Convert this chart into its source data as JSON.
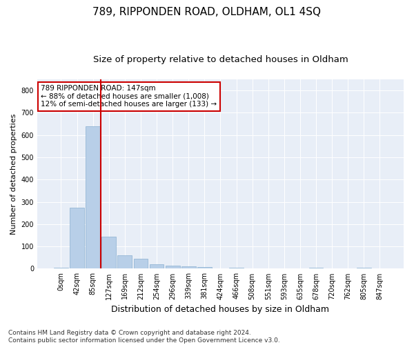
{
  "title": "789, RIPPONDEN ROAD, OLDHAM, OL1 4SQ",
  "subtitle": "Size of property relative to detached houses in Oldham",
  "xlabel": "Distribution of detached houses by size in Oldham",
  "ylabel": "Number of detached properties",
  "bar_color": "#b8cfe8",
  "bar_edge_color": "#8ab0d0",
  "vline_color": "#cc0000",
  "vline_x": 3,
  "annotation_text": "789 RIPPONDEN ROAD: 147sqm\n← 88% of detached houses are smaller (1,008)\n12% of semi-detached houses are larger (133) →",
  "annotation_box_color": "#cc0000",
  "bins": [
    "0sqm",
    "42sqm",
    "85sqm",
    "127sqm",
    "169sqm",
    "212sqm",
    "254sqm",
    "296sqm",
    "339sqm",
    "381sqm",
    "424sqm",
    "466sqm",
    "508sqm",
    "551sqm",
    "593sqm",
    "635sqm",
    "678sqm",
    "720sqm",
    "762sqm",
    "805sqm",
    "847sqm"
  ],
  "values": [
    5,
    275,
    640,
    145,
    60,
    45,
    20,
    15,
    12,
    6,
    0,
    3,
    0,
    0,
    0,
    0,
    5,
    0,
    0,
    3,
    0
  ],
  "ylim": [
    0,
    850
  ],
  "yticks": [
    0,
    100,
    200,
    300,
    400,
    500,
    600,
    700,
    800
  ],
  "plot_bg": "#e8eef7",
  "footer": "Contains HM Land Registry data © Crown copyright and database right 2024.\nContains public sector information licensed under the Open Government Licence v3.0.",
  "title_fontsize": 11,
  "subtitle_fontsize": 9.5,
  "xlabel_fontsize": 9,
  "ylabel_fontsize": 8,
  "footer_fontsize": 6.5,
  "tick_fontsize": 7,
  "ann_fontsize": 7.5
}
